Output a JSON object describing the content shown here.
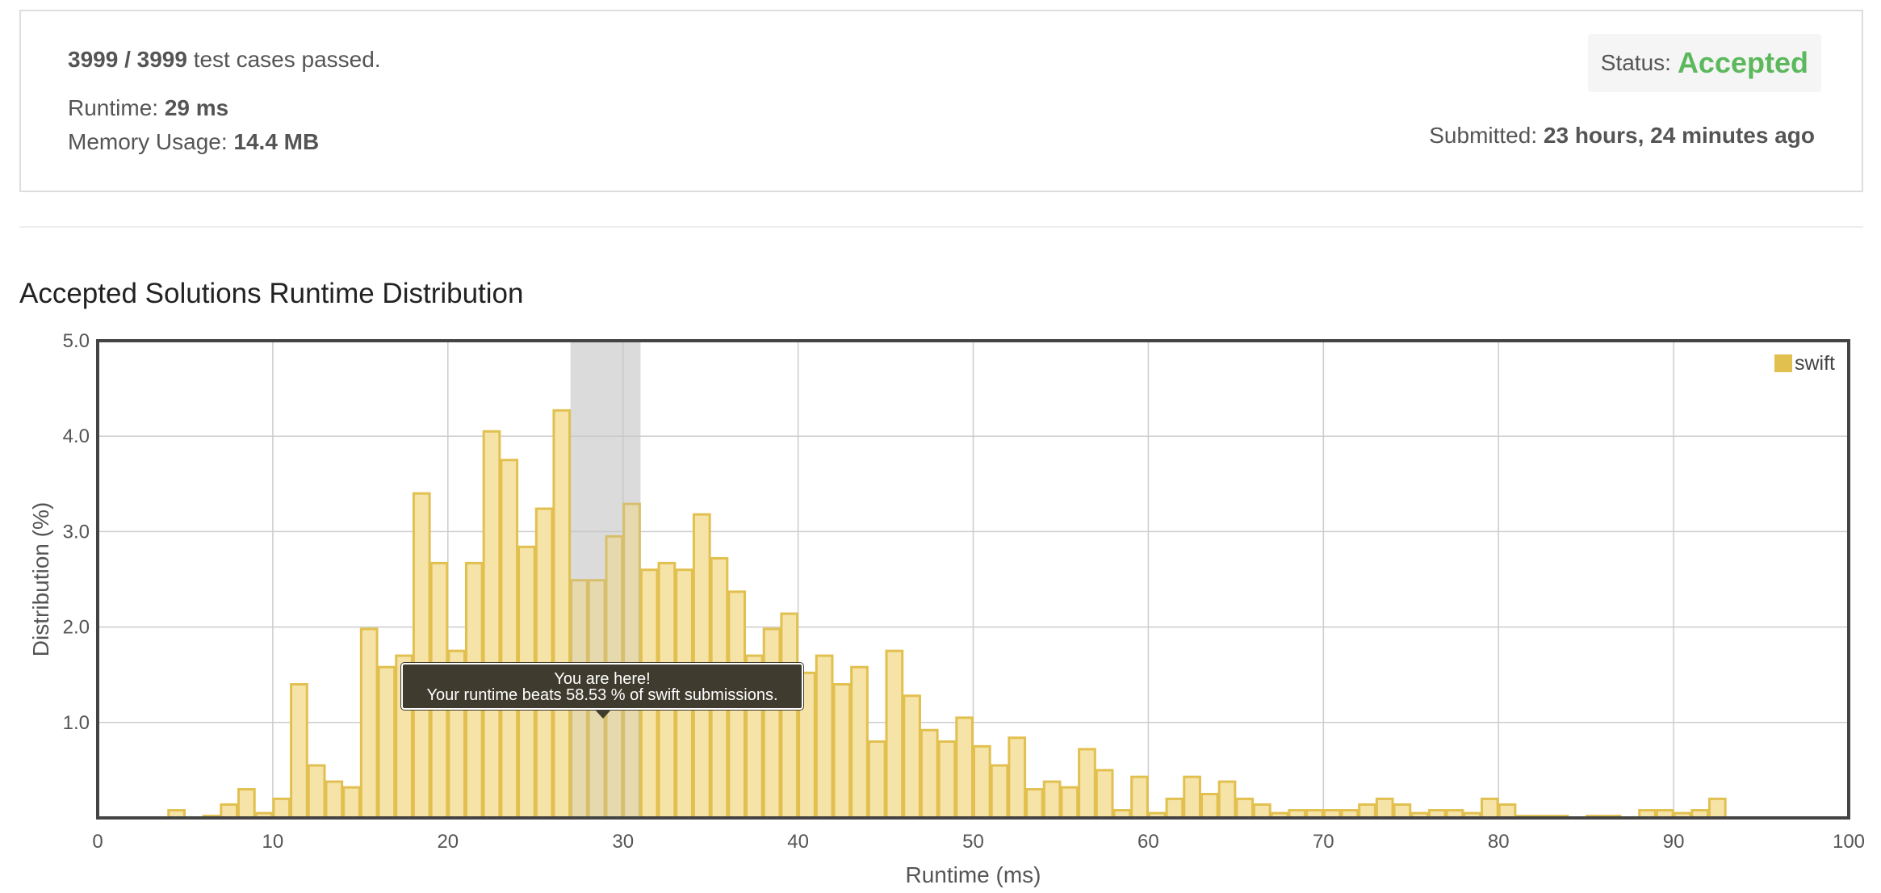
{
  "summary": {
    "cases_passed": "3999 / 3999",
    "cases_suffix": " test cases passed.",
    "runtime_label": "Runtime: ",
    "runtime_value": "29 ms",
    "memory_label": "Memory Usage: ",
    "memory_value": "14.4 MB",
    "status_label": "Status:",
    "status_value": "Accepted",
    "submitted_label": "Submitted: ",
    "submitted_value": "23 hours, 24 minutes ago"
  },
  "section_title": "Accepted Solutions Runtime Distribution",
  "tooltip": {
    "line1": "You are here!",
    "line2": "Your runtime beats 58.53 % of swift submissions."
  },
  "colors": {
    "accepted": "#5cb85c",
    "bar_fill": "#f5e3a8",
    "bar_stroke": "#e2c04f",
    "highlight_band": "#e6e6e6",
    "grid": "#cccccc",
    "axis_border": "#444444"
  },
  "chart_data": {
    "type": "bar",
    "xlabel": "Runtime (ms)",
    "ylabel": "Distribution (%)",
    "xlim": [
      0,
      100
    ],
    "ylim": [
      0,
      5.0
    ],
    "xticks": [
      0,
      10,
      20,
      30,
      40,
      50,
      60,
      70,
      80,
      90,
      100
    ],
    "yticks": [
      1.0,
      2.0,
      3.0,
      4.0,
      5.0
    ],
    "ytick_labels": [
      "1.0",
      "2.0",
      "3.0",
      "4.0",
      "5.0"
    ],
    "grid": true,
    "legend_position": "top-right",
    "highlight_range": [
      27,
      31
    ],
    "bin_width": 1,
    "series": [
      {
        "name": "swift",
        "x": [
          4,
          5,
          6,
          7,
          8,
          9,
          10,
          11,
          12,
          13,
          14,
          15,
          16,
          17,
          18,
          19,
          20,
          21,
          22,
          23,
          24,
          25,
          26,
          27,
          28,
          29,
          30,
          31,
          32,
          33,
          34,
          35,
          36,
          37,
          38,
          39,
          40,
          41,
          42,
          43,
          44,
          45,
          46,
          47,
          48,
          49,
          50,
          51,
          52,
          53,
          54,
          55,
          56,
          57,
          58,
          59,
          60,
          61,
          62,
          63,
          64,
          65,
          66,
          67,
          68,
          69,
          70,
          71,
          72,
          73,
          74,
          75,
          76,
          77,
          78,
          79,
          80,
          81,
          82,
          83,
          84,
          85,
          86,
          87,
          88,
          89,
          90,
          91,
          92,
          93
        ],
        "values": [
          0.08,
          0.0,
          0.02,
          0.14,
          0.3,
          0.05,
          0.2,
          1.4,
          0.55,
          0.38,
          0.32,
          1.98,
          1.58,
          1.7,
          3.4,
          2.67,
          1.75,
          2.67,
          4.05,
          3.75,
          2.84,
          3.24,
          4.27,
          2.49,
          2.49,
          2.95,
          3.29,
          2.6,
          2.67,
          2.6,
          3.18,
          2.72,
          2.37,
          1.7,
          1.98,
          2.14,
          1.52,
          1.7,
          1.4,
          1.58,
          0.8,
          1.75,
          1.28,
          0.92,
          0.8,
          1.05,
          0.75,
          0.55,
          0.84,
          0.3,
          0.38,
          0.32,
          0.72,
          0.5,
          0.08,
          0.43,
          0.05,
          0.2,
          0.43,
          0.25,
          0.38,
          0.2,
          0.14,
          0.05,
          0.08,
          0.08,
          0.08,
          0.08,
          0.14,
          0.2,
          0.14,
          0.05,
          0.08,
          0.08,
          0.05,
          0.2,
          0.14,
          0.02,
          0.02,
          0.02,
          0.0,
          0.02,
          0.02,
          0.0,
          0.08,
          0.08,
          0.05,
          0.08,
          0.2,
          0.0
        ]
      }
    ]
  }
}
